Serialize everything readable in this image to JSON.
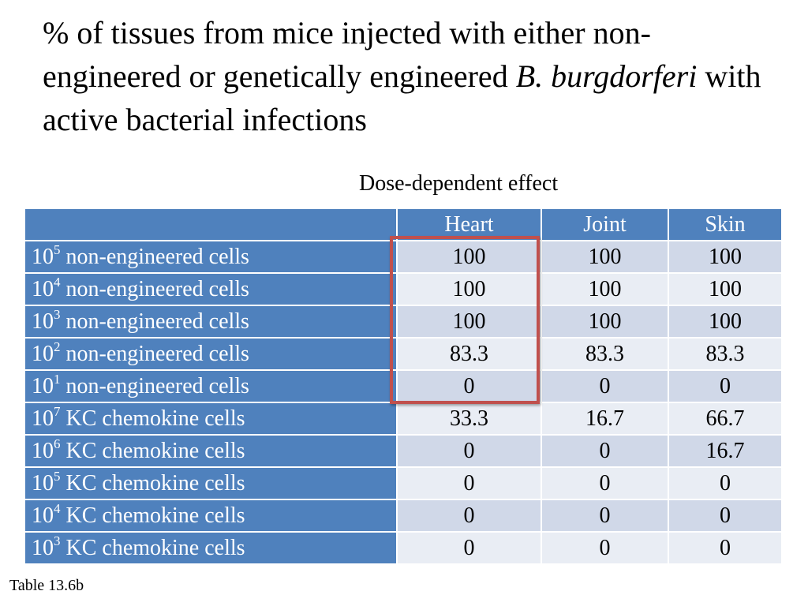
{
  "title": {
    "pre": "% of tissues from mice injected with either non-engineered or genetically engineered ",
    "italic1": "B. burgdorferi",
    "post": " with active bacterial infections"
  },
  "subtitle": "Dose-dependent effect",
  "table": {
    "columns": [
      "",
      "Heart",
      "Joint",
      "Skin"
    ],
    "rows": [
      {
        "base": "10",
        "exp": "5",
        "label": " non-engineered cells",
        "values": [
          "100",
          "100",
          "100"
        ]
      },
      {
        "base": "10",
        "exp": "4",
        "label": " non-engineered cells",
        "values": [
          "100",
          "100",
          "100"
        ]
      },
      {
        "base": "10",
        "exp": "3",
        "label": " non-engineered cells",
        "values": [
          "100",
          "100",
          "100"
        ]
      },
      {
        "base": "10",
        "exp": "2",
        "label": " non-engineered cells",
        "values": [
          "83.3",
          "83.3",
          "83.3"
        ]
      },
      {
        "base": "10",
        "exp": "1",
        "label": " non-engineered cells",
        "values": [
          "0",
          "0",
          "0"
        ]
      },
      {
        "base": "10",
        "exp": "7",
        "label": " KC chemokine cells",
        "values": [
          "33.3",
          "16.7",
          "66.7"
        ]
      },
      {
        "base": "10",
        "exp": "6",
        "label": " KC chemokine cells",
        "values": [
          "0",
          "0",
          "16.7"
        ]
      },
      {
        "base": "10",
        "exp": "5",
        "label": " KC chemokine cells",
        "values": [
          "0",
          "0",
          "0"
        ]
      },
      {
        "base": "10",
        "exp": "4",
        "label": " KC chemokine cells",
        "values": [
          "0",
          "0",
          "0"
        ]
      },
      {
        "base": "10",
        "exp": "3",
        "label": " KC chemokine cells",
        "values": [
          "0",
          "0",
          "0"
        ]
      }
    ]
  },
  "highlight_color": "#c0504d",
  "header_color": "#4f81bd",
  "caption": "Table 13.6b"
}
